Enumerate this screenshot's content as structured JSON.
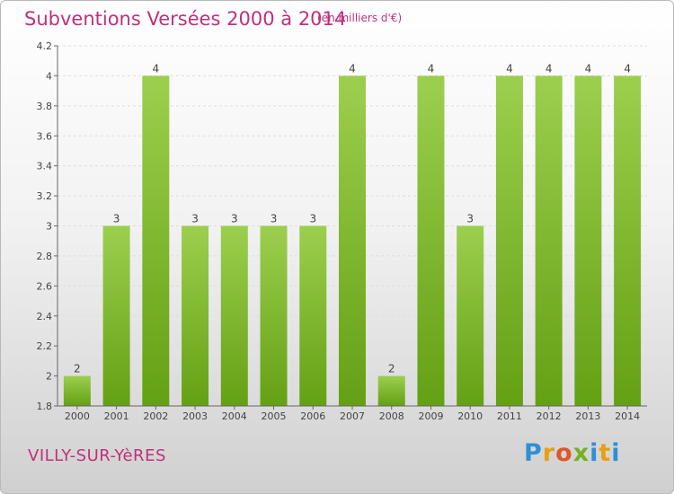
{
  "header": {
    "title": "Subventions Versées 2000 à 2014",
    "unit": "(en milliers d'€)"
  },
  "footer": {
    "commune": "VILLY-SUR-YèRES",
    "logo": "Proxiti"
  },
  "colors": {
    "title": "#c0307a",
    "bar_light": "#9ccf4e",
    "bar_dark": "#64a014",
    "gridline": "#dddddd"
  },
  "chart_data": {
    "type": "bar",
    "categories": [
      "2000",
      "2001",
      "2002",
      "2003",
      "2004",
      "2005",
      "2006",
      "2007",
      "2008",
      "2009",
      "2010",
      "2011",
      "2012",
      "2013",
      "2014"
    ],
    "values": [
      2,
      3,
      4,
      3,
      3,
      3,
      3,
      4,
      2,
      4,
      3,
      4,
      4,
      4,
      4
    ],
    "data_labels": [
      "2",
      "3",
      "4",
      "3",
      "3",
      "3",
      "3",
      "4",
      "2",
      "4",
      "3",
      "4",
      "4",
      "4",
      "4"
    ],
    "ylim": [
      1.8,
      4.2
    ],
    "yticks": [
      1.8,
      2,
      2.2,
      2.4,
      2.6,
      2.8,
      3,
      3.2,
      3.4,
      3.6,
      3.8,
      4,
      4.2
    ],
    "ytick_labels": [
      "1.8",
      "2",
      "2.2",
      "2.4",
      "2.6",
      "2.8",
      "3",
      "3.2",
      "3.4",
      "3.6",
      "3.8",
      "4",
      "4.2"
    ],
    "grid": "horizontal dashed"
  }
}
